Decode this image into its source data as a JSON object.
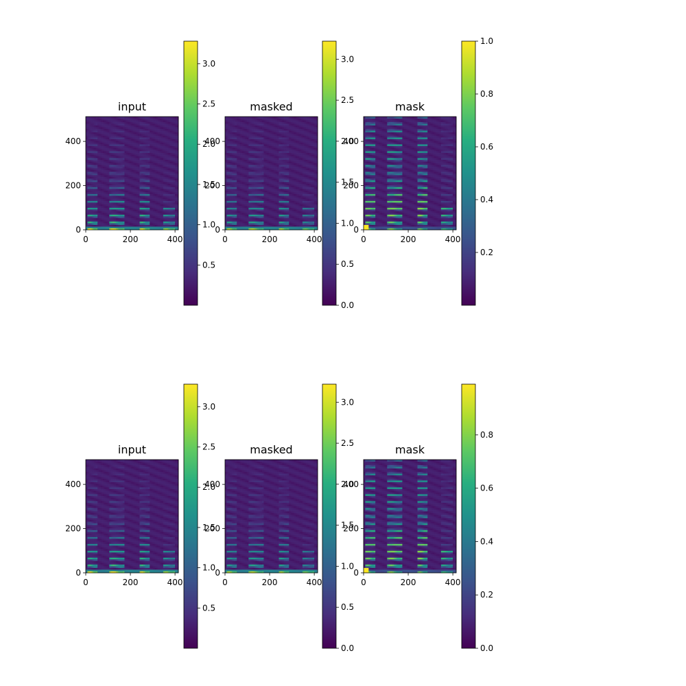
{
  "figure": {
    "colormap": "viridis",
    "rows": [
      {
        "panels": [
          {
            "title": "input",
            "colorbar": {
              "ticks": [
                "0.5",
                "1.0",
                "1.5",
                "2.0",
                "2.5",
                "3.0"
              ],
              "vmin": 0.0,
              "vmax": 3.28
            }
          },
          {
            "title": "masked",
            "colorbar": {
              "ticks": [
                "0.0",
                "0.5",
                "1.0",
                "1.5",
                "2.0",
                "2.5",
                "3.0"
              ],
              "vmin": 0.0,
              "vmax": 3.22
            }
          },
          {
            "title": "mask",
            "colorbar": {
              "ticks": [
                "0.2",
                "0.4",
                "0.6",
                "0.8",
                "1.0"
              ],
              "vmin": 0.0,
              "vmax": 1.0
            }
          }
        ]
      },
      {
        "panels": [
          {
            "title": "input",
            "colorbar": {
              "ticks": [
                "0.5",
                "1.0",
                "1.5",
                "2.0",
                "2.5",
                "3.0"
              ],
              "vmin": 0.0,
              "vmax": 3.28
            }
          },
          {
            "title": "masked",
            "colorbar": {
              "ticks": [
                "0.0",
                "0.5",
                "1.0",
                "1.5",
                "2.0",
                "2.5",
                "3.0"
              ],
              "vmin": 0.0,
              "vmax": 3.22
            }
          },
          {
            "title": "mask",
            "colorbar": {
              "ticks": [
                "0.0",
                "0.2",
                "0.4",
                "0.6",
                "0.8"
              ],
              "vmin": 0.0,
              "vmax": 0.99
            }
          }
        ]
      }
    ]
  },
  "chart_data": {
    "type": "heatmap",
    "x_ticks": [
      "0",
      "200",
      "400"
    ],
    "y_ticks": [
      "0",
      "200",
      "400"
    ],
    "x_range": [
      0,
      415
    ],
    "y_range": [
      0,
      512
    ],
    "syllables_x": [
      [
        5,
        55
      ],
      [
        105,
        175
      ],
      [
        240,
        290
      ],
      [
        345,
        400
      ]
    ]
  }
}
